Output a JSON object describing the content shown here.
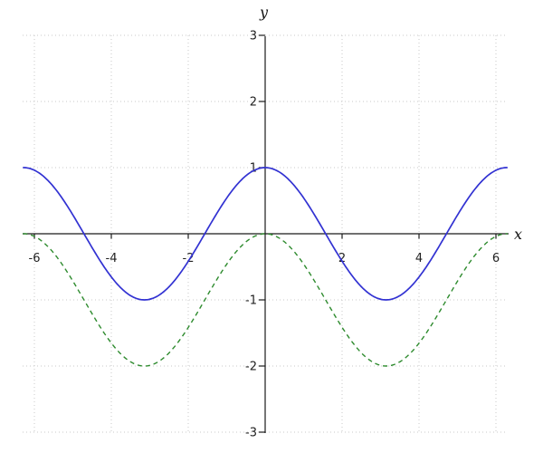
{
  "chart_data": {
    "type": "line",
    "title": "",
    "xlabel": "x",
    "ylabel": "y",
    "xlim": [
      -6.45,
      6.45
    ],
    "ylim": [
      -3.1,
      3.1
    ],
    "x_ticks": [
      -6,
      -4,
      -2,
      2,
      4,
      6
    ],
    "y_ticks": [
      -3,
      -2,
      -1,
      1,
      2,
      3
    ],
    "grid": true,
    "grid_x_step": 2,
    "grid_y_step": 1,
    "legend": false,
    "series": [
      {
        "name": "blue-solid-curve",
        "expression": "cos(x)",
        "domain": [
          -6.3,
          6.3
        ],
        "color": "#3232d2",
        "line_style": "solid",
        "line_width": 1.7
      },
      {
        "name": "green-dashed-curve",
        "expression": "cos(x)-1",
        "domain": [
          -6.3,
          6.3
        ],
        "color": "#2e8b2e",
        "line_style": "dashed",
        "line_width": 1.4
      }
    ],
    "colors": {
      "axis": "#1a1a1a",
      "grid": "#c9c9c9",
      "tick_labels": "#222222"
    }
  }
}
